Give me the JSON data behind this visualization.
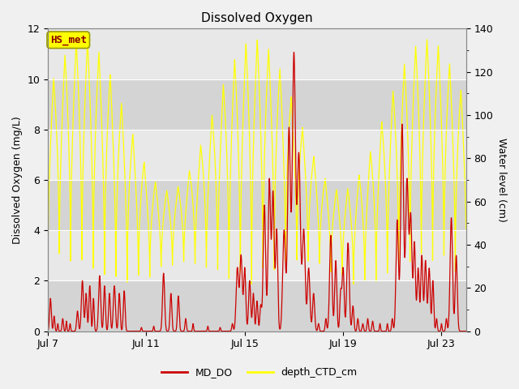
{
  "title": "Dissolved Oxygen",
  "ylabel_left": "Dissolved Oxygen (mg/L)",
  "ylabel_right": "Water level (cm)",
  "ylim_left": [
    0,
    12
  ],
  "ylim_right": [
    0,
    140
  ],
  "yticks_left": [
    0,
    2,
    4,
    6,
    8,
    10,
    12
  ],
  "yticks_right": [
    0,
    20,
    40,
    60,
    80,
    100,
    120,
    140
  ],
  "xtick_labels": [
    "Jul 7",
    "Jul 11",
    "Jul 15",
    "Jul 19",
    "Jul 23"
  ],
  "xtick_positions": [
    0,
    4,
    8,
    12,
    16
  ],
  "xlim": [
    0,
    17
  ],
  "fig_bg_color": "#f0f0f0",
  "plot_bg_color": "#e8e8e8",
  "band_dark_color": "#d4d4d4",
  "band_light_color": "#e8e8e8",
  "md_do_color": "#cc0000",
  "depth_ctd_color": "#ffff00",
  "grid_color": "#c0c0c0",
  "annotation_text": "HS_met",
  "annotation_color": "#8b0000",
  "annotation_bg": "#ffff00",
  "annotation_border": "#999900",
  "legend_md_do": "MD_DO",
  "legend_depth": "depth_CTD_cm",
  "title_fontsize": 11,
  "axis_label_fontsize": 9,
  "tick_fontsize": 9,
  "legend_fontsize": 9
}
